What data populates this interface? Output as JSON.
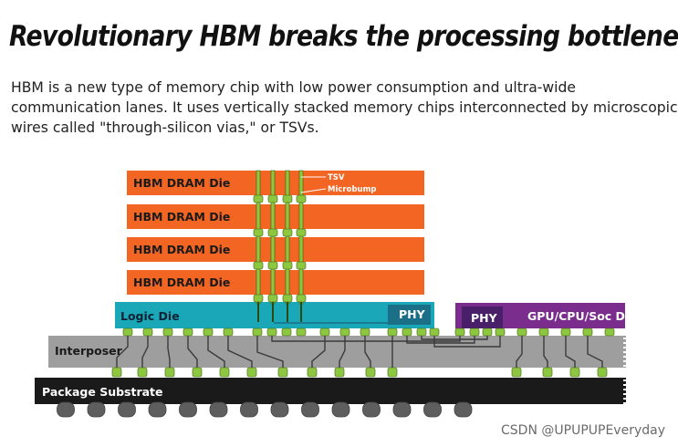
{
  "title": "Revolutionary HBM breaks the processing bottleneck",
  "description_lines": [
    "HBM is a new type of memory chip with low power consumption and ultra-wide",
    "communication lanes. It uses vertically stacked memory chips interconnected by microscopic",
    "wires called \"through-silicon vias,\" or TSVs."
  ],
  "diagram": {
    "dram_dies": [
      "HBM DRAM Die",
      "HBM DRAM Die",
      "HBM DRAM Die",
      "HBM DRAM Die"
    ],
    "tsv_label": "TSV",
    "microbump_label": "Microbump",
    "logic_die_label": "Logic Die",
    "logic_phy_label": "PHY",
    "gpu_phy_label": "PHY",
    "gpu_label": "GPU/CPU/Soc Die",
    "interposer_label": "Interposer",
    "substrate_label": "Package Substrate",
    "colors": {
      "dram": "#f26522",
      "logic": "#1aa7b8",
      "phy": "#1b6f86",
      "gpu": "#7b2d8e",
      "gpu_phy": "#4a1f6a",
      "interposer": "#9e9e9e",
      "substrate": "#1a1a1a",
      "bump": "#8dc63f",
      "ball": "#5e5e5e"
    }
  },
  "watermark": "CSDN @UPUPUPEveryday"
}
